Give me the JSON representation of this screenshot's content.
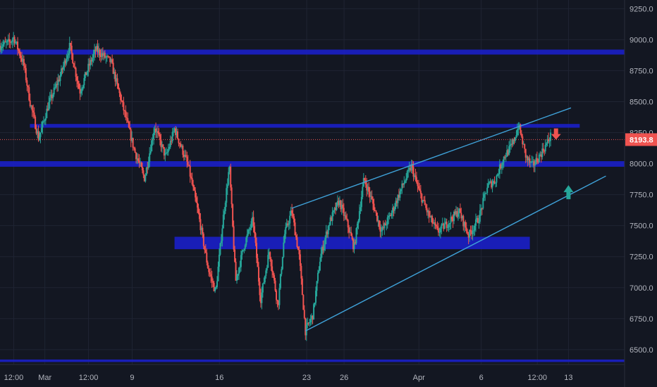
{
  "chart_data": {
    "type": "candlestick",
    "title": "",
    "xlabel": "",
    "ylabel": "",
    "ylim": [
      6380,
      9320
    ],
    "y_ticks": [
      6500,
      6750,
      7000,
      7250,
      7500,
      7750,
      8000,
      8250,
      8500,
      8750,
      9000,
      9250
    ],
    "y_tick_labels": [
      "6500.0",
      "6750.0",
      "7000.0",
      "7250.0",
      "7500.0",
      "7750.0",
      "8000.0",
      "8250.0",
      "8500.0",
      "8750.0",
      "9000.0",
      "9250.0"
    ],
    "x_ticks": [
      {
        "label": "12:00",
        "t": 1.5
      },
      {
        "label": "Mar",
        "t": 4.0
      },
      {
        "label": "12:00",
        "t": 7.5
      },
      {
        "label": "9",
        "t": 11.0
      },
      {
        "label": "16",
        "t": 18.0
      },
      {
        "label": "23",
        "t": 25.0
      },
      {
        "label": "26",
        "t": 28.0
      },
      {
        "label": "Apr",
        "t": 34.0
      },
      {
        "label": "6",
        "t": 39.0
      },
      {
        "label": "12:00",
        "t": 43.5
      },
      {
        "label": "13",
        "t": 46.0
      }
    ],
    "t_range": [
      0.4,
      50.5
    ],
    "last_price": 8193.8,
    "last_price_label": "8193.8",
    "series": [
      {
        "t": 0.4,
        "price": 8950
      },
      {
        "t": 1.2,
        "price": 8980
      },
      {
        "t": 1.5,
        "price": 9020
      },
      {
        "t": 2.3,
        "price": 8800
      },
      {
        "t": 2.8,
        "price": 8500
      },
      {
        "t": 3.5,
        "price": 8200
      },
      {
        "t": 4.3,
        "price": 8480
      },
      {
        "t": 5.2,
        "price": 8700
      },
      {
        "t": 6.0,
        "price": 8950
      },
      {
        "t": 6.8,
        "price": 8580
      },
      {
        "t": 7.5,
        "price": 8780
      },
      {
        "t": 8.1,
        "price": 8920
      },
      {
        "t": 9.3,
        "price": 8820
      },
      {
        "t": 10.2,
        "price": 8480
      },
      {
        "t": 11.2,
        "price": 8100
      },
      {
        "t": 12.0,
        "price": 7880
      },
      {
        "t": 12.8,
        "price": 8300
      },
      {
        "t": 13.7,
        "price": 8050
      },
      {
        "t": 14.4,
        "price": 8280
      },
      {
        "t": 15.5,
        "price": 7980
      },
      {
        "t": 16.3,
        "price": 7600
      },
      {
        "t": 17.1,
        "price": 7150
      },
      {
        "t": 17.7,
        "price": 6960
      },
      {
        "t": 18.3,
        "price": 7560
      },
      {
        "t": 18.8,
        "price": 7980
      },
      {
        "t": 19.3,
        "price": 7050
      },
      {
        "t": 20.0,
        "price": 7350
      },
      {
        "t": 20.7,
        "price": 7550
      },
      {
        "t": 21.3,
        "price": 6900
      },
      {
        "t": 22.0,
        "price": 7300
      },
      {
        "t": 22.7,
        "price": 6850
      },
      {
        "t": 23.2,
        "price": 7420
      },
      {
        "t": 23.8,
        "price": 7620
      },
      {
        "t": 24.4,
        "price": 7250
      },
      {
        "t": 24.9,
        "price": 6650
      },
      {
        "t": 25.5,
        "price": 6780
      },
      {
        "t": 26.1,
        "price": 7250
      },
      {
        "t": 26.8,
        "price": 7520
      },
      {
        "t": 27.6,
        "price": 7700
      },
      {
        "t": 28.3,
        "price": 7500
      },
      {
        "t": 28.8,
        "price": 7320
      },
      {
        "t": 29.6,
        "price": 7880
      },
      {
        "t": 30.3,
        "price": 7680
      },
      {
        "t": 31.0,
        "price": 7450
      },
      {
        "t": 31.8,
        "price": 7600
      },
      {
        "t": 32.6,
        "price": 7800
      },
      {
        "t": 33.4,
        "price": 7980
      },
      {
        "t": 34.0,
        "price": 7780
      },
      {
        "t": 34.8,
        "price": 7580
      },
      {
        "t": 35.5,
        "price": 7450
      },
      {
        "t": 36.3,
        "price": 7520
      },
      {
        "t": 37.2,
        "price": 7620
      },
      {
        "t": 38.0,
        "price": 7420
      },
      {
        "t": 38.8,
        "price": 7560
      },
      {
        "t": 39.5,
        "price": 7820
      },
      {
        "t": 40.1,
        "price": 7860
      },
      {
        "t": 40.8,
        "price": 8050
      },
      {
        "t": 41.5,
        "price": 8150
      },
      {
        "t": 42.0,
        "price": 8310
      },
      {
        "t": 42.6,
        "price": 8050
      },
      {
        "t": 43.1,
        "price": 7980
      },
      {
        "t": 43.6,
        "price": 8050
      },
      {
        "t": 44.2,
        "price": 8150
      },
      {
        "t": 44.6,
        "price": 8230
      }
    ],
    "zones": [
      {
        "label": "",
        "t_start": 0.4,
        "t_end": 50.5,
        "y_low": 8880,
        "y_high": 8920
      },
      {
        "label": "",
        "t_start": 2.8,
        "t_end": 46.9,
        "y_low": 8290,
        "y_high": 8320
      },
      {
        "label": "",
        "t_start": 0.4,
        "t_end": 50.5,
        "y_low": 7975,
        "y_high": 8020
      },
      {
        "label": "",
        "t_start": 14.4,
        "t_end": 42.9,
        "y_low": 7310,
        "y_high": 7410
      },
      {
        "label": "",
        "t_start": 0.4,
        "t_end": 50.5,
        "y_low": 6400,
        "y_high": 6420
      }
    ],
    "trendlines": [
      {
        "label": "",
        "t1": 23.8,
        "y1": 7640,
        "t2": 46.2,
        "y2": 8450
      },
      {
        "label": "",
        "t1": 24.9,
        "y1": 6650,
        "t2": 49.0,
        "y2": 7900
      }
    ],
    "markers": [
      {
        "label": "",
        "direction": "down",
        "t": 45.0,
        "price": 8205
      },
      {
        "label": "",
        "direction": "up",
        "t": 46.0,
        "price": 7770
      }
    ],
    "colors": {
      "background": "#131722",
      "grid": "#1f2433",
      "up": "#26a69a",
      "down": "#ef5350",
      "wick": "#9ea3ad",
      "zone": "#1a1fc4",
      "trendline": "#3fa2d9",
      "last_price": "#ef5350",
      "marker_down": "#ef5350",
      "marker_up": "#26a69a"
    },
    "grid": true
  }
}
